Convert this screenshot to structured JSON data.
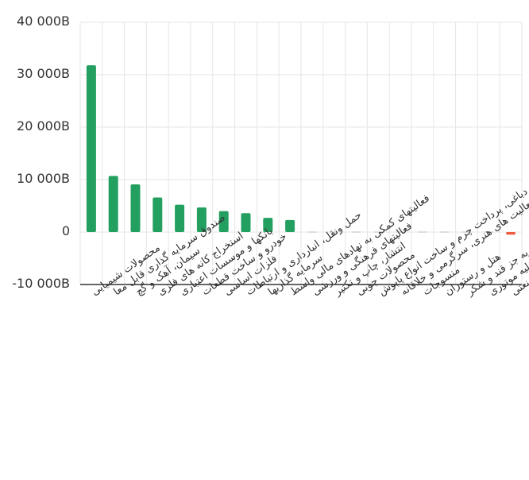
{
  "chart_data": {
    "type": "bar",
    "title": "",
    "xlabel": "",
    "ylabel": "",
    "ylim": [
      -10000,
      40000
    ],
    "grid": true,
    "legend": "none",
    "y_ticks": [
      {
        "value": 40000,
        "label": "40 000B"
      },
      {
        "value": 30000,
        "label": "30 000B"
      },
      {
        "value": 20000,
        "label": "20 000B"
      },
      {
        "value": 10000,
        "label": "10 000B"
      },
      {
        "value": 0,
        "label": "0"
      },
      {
        "value": -10000,
        "label": "-10 000B"
      }
    ],
    "categories": [
      "محصولات شیمیایی",
      "صندوق سرمایه گذاری قابل معا",
      "سیمان، آهک و گچ",
      "استخراج کانه های فلزی",
      "بانکها و موسسات اعتباری",
      "خودرو و ساخت قطعات",
      "فلزات اساسی",
      "حمل ونقل، انبارداری و ارتباطات",
      "سرمایه گذاریها",
      "فعالیتهای کمکی به نهادهای مالی واسط",
      "فعالیتهای فرهنگی و ورزشی",
      "انتشار، چاپ و تکثیر",
      "محصولات چوبی",
      "دباغی، پرداخت چرم و ساخت انواع پاپوش",
      "فعالیت های هنری، سرگرمی و خلاقانه",
      "منسوجات",
      "هتل و رستوران",
      "محصولات غذایی و آشامیدنی به جز قند و شکر",
      "خرده فروشی،باستثنای وسایل نقلیه موتوری",
      "شرکتهای چند رشته ای صنعتی"
    ],
    "values": [
      31800,
      10700,
      9100,
      6600,
      5200,
      4700,
      4000,
      3600,
      2700,
      2300,
      0,
      0,
      0,
      0,
      0,
      0,
      0,
      0,
      0,
      -500
    ],
    "colors": {
      "positive": "#23a060",
      "negative": "#f05a40",
      "zero": "#dddddd",
      "grid": "#e6e6e6",
      "axis": "#333333"
    }
  }
}
